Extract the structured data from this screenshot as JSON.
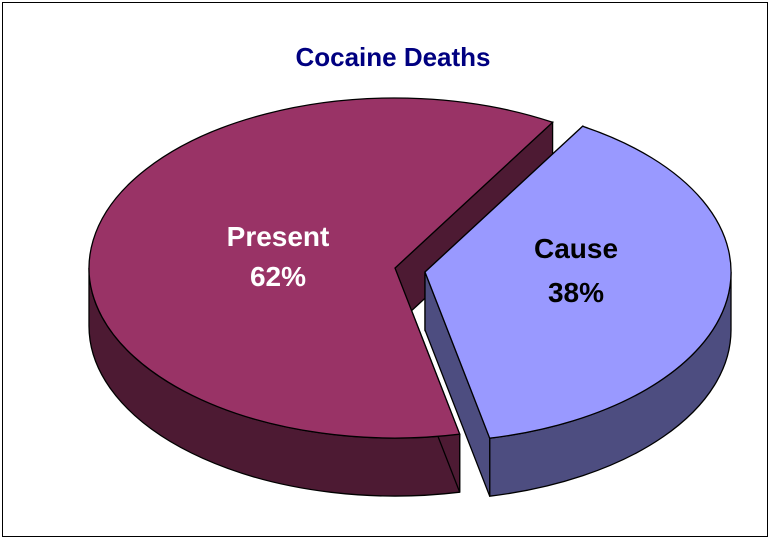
{
  "chart_data": {
    "type": "pie",
    "title": "Cocaine Deaths",
    "style": "3d-exploded",
    "legend": "none",
    "slices": [
      {
        "name": "Present",
        "value": 62,
        "label": "62%",
        "top_color": "#993366",
        "side_color": "#4d1a33",
        "label_color": "#ffffff"
      },
      {
        "name": "Cause",
        "value": 38,
        "label": "38%",
        "top_color": "#9999ff",
        "side_color": "#4d4d80",
        "label_color": "#000000"
      }
    ]
  },
  "colors": {
    "title": "#000080",
    "border": "#000000",
    "background": "#ffffff"
  }
}
